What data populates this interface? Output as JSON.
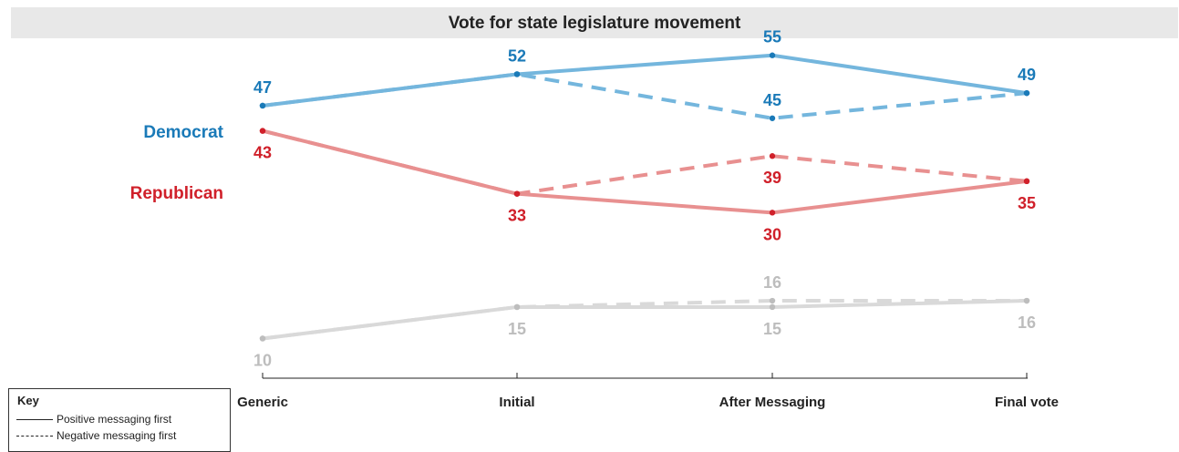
{
  "chart_data": {
    "type": "line",
    "title": "Vote for state legislature movement",
    "categories": [
      "Generic",
      "Initial",
      "After Messaging",
      "Final vote"
    ],
    "ylim": [
      5,
      58
    ],
    "series": [
      {
        "group": "Democrat",
        "style": "solid",
        "color": "#74b6dd",
        "label_color": "#1a7ab8",
        "values": [
          47,
          52,
          55,
          49
        ],
        "labels": [
          "47",
          "52",
          "55",
          "49"
        ]
      },
      {
        "group": "Democrat",
        "style": "dashed",
        "color": "#74b6dd",
        "label_color": "#1a7ab8",
        "values": [
          47,
          52,
          45,
          49
        ],
        "labels": [
          "",
          "",
          "45",
          ""
        ]
      },
      {
        "group": "Republican",
        "style": "solid",
        "color": "#e89090",
        "label_color": "#d0202a",
        "values": [
          43,
          33,
          30,
          35
        ],
        "labels": [
          "43",
          "33",
          "30",
          "35"
        ]
      },
      {
        "group": "Republican",
        "style": "dashed",
        "color": "#e89090",
        "label_color": "#d0202a",
        "values": [
          43,
          33,
          39,
          35
        ],
        "labels": [
          "",
          "",
          "39",
          ""
        ]
      },
      {
        "group": "Other",
        "style": "solid",
        "color": "#d9d9d9",
        "label_color": "#bdbdbd",
        "values": [
          10,
          15,
          15,
          16
        ],
        "labels": [
          "10",
          "15",
          "15",
          "16"
        ]
      },
      {
        "group": "Other",
        "style": "dashed",
        "color": "#d9d9d9",
        "label_color": "#bdbdbd",
        "values": [
          10,
          15,
          16,
          16
        ],
        "labels": [
          "",
          "",
          "16",
          ""
        ]
      }
    ],
    "series_labels": [
      {
        "text": "Democrat",
        "color": "#1a7ab8"
      },
      {
        "text": "Republican",
        "color": "#d0202a"
      }
    ],
    "grid": false,
    "legend": {
      "title": "Key",
      "placement": "bottom-left",
      "items": [
        {
          "style": "solid",
          "label": "Positive messaging first"
        },
        {
          "style": "dashed",
          "label": "Negative messaging first"
        }
      ]
    }
  }
}
